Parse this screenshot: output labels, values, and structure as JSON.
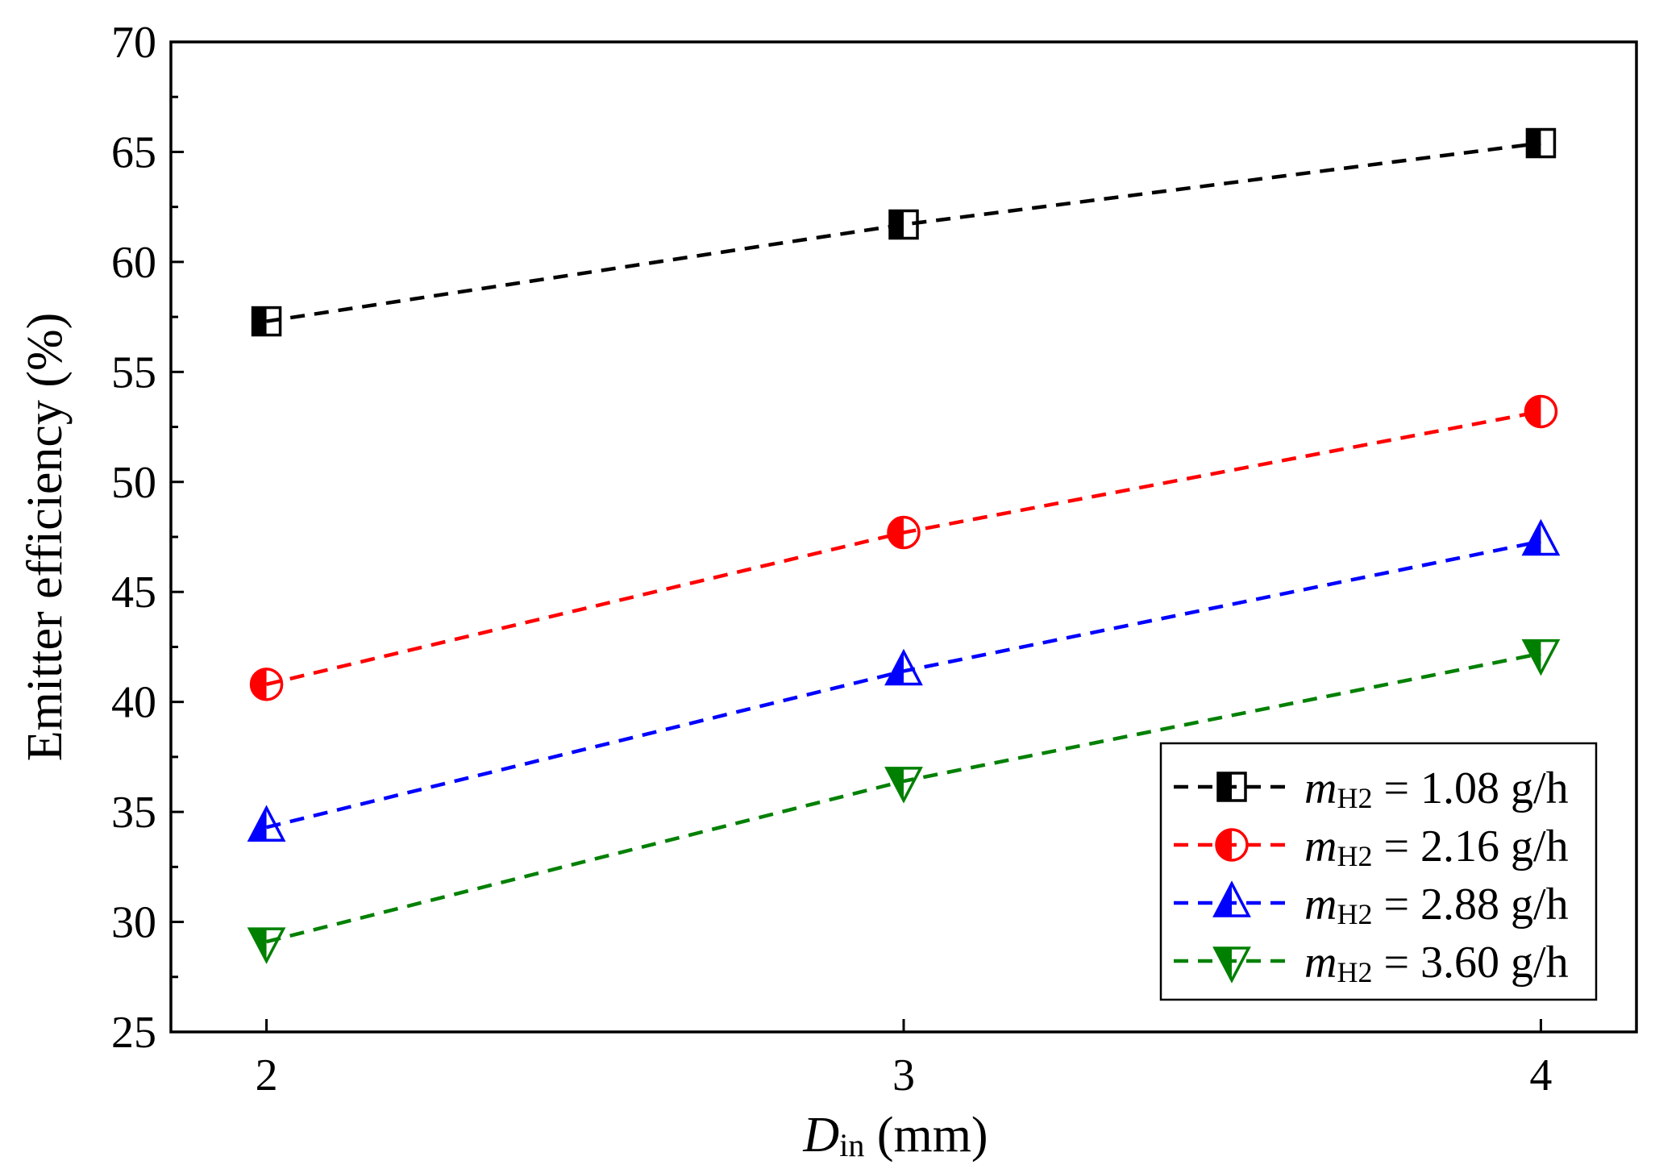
{
  "chart_data": {
    "type": "line",
    "title": "",
    "xlabel": {
      "main": "D",
      "sub": "in",
      "unit": " (mm)"
    },
    "ylabel": "Emitter efficiency (%)",
    "x": [
      2,
      3,
      4
    ],
    "xlim": [
      1.85,
      4.15
    ],
    "ylim": [
      25,
      70
    ],
    "xticks": [
      2,
      3,
      4
    ],
    "yticks": [
      25,
      30,
      35,
      40,
      45,
      50,
      55,
      60,
      65,
      70
    ],
    "grid": false,
    "legend_position": "bottom-right",
    "series": [
      {
        "name": "m_H2 = 1.08 g/h",
        "var": "m",
        "sub": "H2",
        "rest": " = 1.08 g/h",
        "color": "#000000",
        "marker": "square-half",
        "values": [
          57.3,
          61.7,
          65.4
        ]
      },
      {
        "name": "m_H2 = 2.16 g/h",
        "var": "m",
        "sub": "H2",
        "rest": " = 2.16 g/h",
        "color": "#ff0000",
        "marker": "circle-half",
        "values": [
          40.8,
          47.7,
          53.2
        ]
      },
      {
        "name": "m_H2 = 2.88 g/h",
        "var": "m",
        "sub": "H2",
        "rest": " = 2.88 g/h",
        "color": "#0000ff",
        "marker": "triangle-up-half",
        "values": [
          34.3,
          41.4,
          47.3
        ]
      },
      {
        "name": "m_H2 = 3.60 g/h",
        "var": "m",
        "sub": "H2",
        "rest": " = 3.60 g/h",
        "color": "#008000",
        "marker": "triangle-down-half",
        "values": [
          29.1,
          36.4,
          42.2
        ]
      }
    ]
  }
}
